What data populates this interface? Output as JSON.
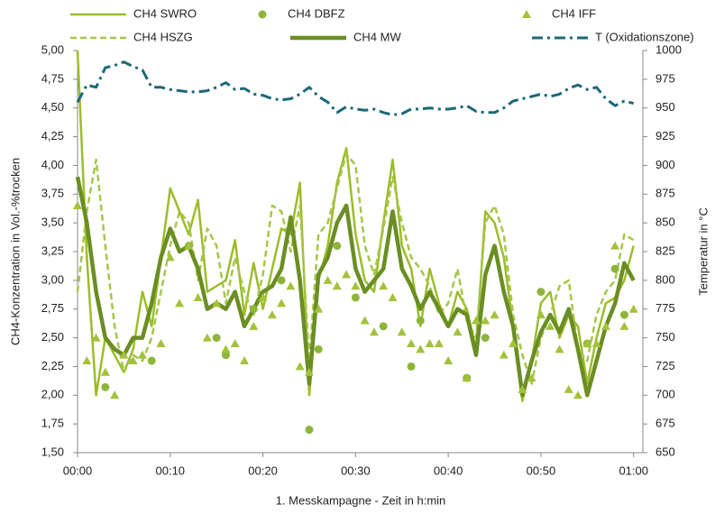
{
  "chart_data": {
    "type": "line",
    "xlabel": "1. Messkampagne - Zeit in h:min",
    "ylabel": "CH4-Konzentration in Vol.-%trocken",
    "y2label": "Temperatur in °C",
    "xlim": [
      0,
      61
    ],
    "xticks": [
      {
        "value": 0,
        "label": "00:00"
      },
      {
        "value": 10,
        "label": "00:10"
      },
      {
        "value": 20,
        "label": "00:20"
      },
      {
        "value": 30,
        "label": "00:30"
      },
      {
        "value": 40,
        "label": "00:40"
      },
      {
        "value": 50,
        "label": "00:50"
      },
      {
        "value": 60,
        "label": "01:00"
      }
    ],
    "ylim": [
      1.5,
      5
    ],
    "yticks": [
      {
        "value": 1.5,
        "label": "1,50"
      },
      {
        "value": 1.75,
        "label": "1,75"
      },
      {
        "value": 2,
        "label": "2,00"
      },
      {
        "value": 2.25,
        "label": "2,25"
      },
      {
        "value": 2.5,
        "label": "2,50"
      },
      {
        "value": 2.75,
        "label": "2,75"
      },
      {
        "value": 3,
        "label": "3,00"
      },
      {
        "value": 3.25,
        "label": "3,25"
      },
      {
        "value": 3.5,
        "label": "3,50"
      },
      {
        "value": 3.75,
        "label": "3,75"
      },
      {
        "value": 4,
        "label": "4,00"
      },
      {
        "value": 4.25,
        "label": "4,25"
      },
      {
        "value": 4.5,
        "label": "4,50"
      },
      {
        "value": 4.75,
        "label": "4,75"
      },
      {
        "value": 5,
        "label": "5,00"
      }
    ],
    "y2lim": [
      650,
      1000
    ],
    "y2ticks": [
      650,
      675,
      700,
      725,
      750,
      775,
      800,
      825,
      850,
      875,
      900,
      925,
      950,
      975,
      1000
    ],
    "grid": false,
    "x": [
      0,
      1,
      2,
      3,
      4,
      5,
      6,
      7,
      8,
      9,
      10,
      11,
      12,
      13,
      14,
      15,
      16,
      17,
      18,
      19,
      20,
      21,
      22,
      23,
      24,
      25,
      26,
      27,
      28,
      29,
      30,
      31,
      32,
      33,
      34,
      35,
      36,
      37,
      38,
      39,
      40,
      41,
      42,
      43,
      44,
      45,
      46,
      47,
      48,
      49,
      50,
      51,
      52,
      53,
      54,
      55,
      56,
      57,
      58,
      59,
      60
    ],
    "series": [
      {
        "name": "CH4  SWRO",
        "type": "line",
        "style": "solid",
        "color": "#9cbd2a",
        "values": [
          5.0,
          3.2,
          2.0,
          2.5,
          2.35,
          2.2,
          2.4,
          2.9,
          2.6,
          3.2,
          3.8,
          3.6,
          3.4,
          3.7,
          2.9,
          2.95,
          3.0,
          3.35,
          2.7,
          3.15,
          2.75,
          3.1,
          3.45,
          3.4,
          3.85,
          2.0,
          3.0,
          3.3,
          3.85,
          4.15,
          3.4,
          3.0,
          2.9,
          3.5,
          4.05,
          3.3,
          3.1,
          2.6,
          3.1,
          2.8,
          2.6,
          2.9,
          2.75,
          2.4,
          3.6,
          3.5,
          3.2,
          2.6,
          1.95,
          2.3,
          2.8,
          2.9,
          2.5,
          2.7,
          2.6,
          2.1,
          2.5,
          2.8,
          2.85,
          3.0,
          3.3
        ]
      },
      {
        "name": "CH4  DBFZ",
        "type": "scatter",
        "marker": "circle",
        "color": "#8db53a",
        "x": [
          3,
          8,
          12,
          15,
          16,
          19,
          22,
          25,
          26,
          28,
          30,
          33,
          36,
          37,
          42,
          44,
          50,
          55,
          58,
          59
        ],
        "values": [
          2.07,
          2.3,
          3.3,
          2.5,
          2.35,
          2.75,
          3.0,
          1.7,
          2.4,
          3.3,
          2.85,
          2.6,
          2.25,
          2.65,
          2.15,
          2.5,
          2.9,
          2.45,
          3.1,
          2.7
        ]
      },
      {
        "name": "CH4  IFF",
        "type": "scatter",
        "marker": "triangle",
        "color": "#a3c23a",
        "x": [
          0,
          1,
          2,
          3,
          4,
          5,
          6,
          7,
          9,
          10,
          11,
          12,
          13,
          14,
          15,
          16,
          17,
          18,
          19,
          20,
          21,
          22,
          23,
          24,
          25,
          26,
          27,
          28,
          29,
          30,
          31,
          32,
          33,
          34,
          35,
          36,
          37,
          38,
          39,
          40,
          41,
          42,
          43,
          44,
          45,
          46,
          47,
          48,
          49,
          50,
          51,
          52,
          53,
          54,
          55,
          56,
          57,
          58,
          59,
          60
        ],
        "values": [
          3.65,
          2.3,
          2.5,
          2.2,
          2.0,
          2.35,
          2.3,
          2.35,
          2.45,
          3.2,
          2.8,
          3.3,
          2.85,
          2.5,
          2.8,
          2.4,
          2.45,
          2.3,
          2.6,
          2.85,
          2.7,
          2.8,
          2.95,
          2.25,
          2.2,
          2.75,
          3.0,
          2.95,
          3.05,
          2.95,
          2.65,
          2.55,
          2.95,
          2.85,
          2.55,
          2.45,
          2.4,
          2.45,
          2.45,
          2.3,
          2.55,
          2.15,
          2.65,
          2.65,
          2.7,
          2.35,
          2.45,
          2.05,
          2.15,
          2.7,
          2.6,
          2.4,
          2.05,
          2.0,
          2.45,
          2.45,
          2.6,
          3.3,
          2.6,
          2.75
        ]
      },
      {
        "name": "CH4  HSZG",
        "type": "line",
        "style": "dashed",
        "color": "#a6c64a",
        "values": [
          2.9,
          3.6,
          4.05,
          3.3,
          2.6,
          2.2,
          2.35,
          2.3,
          2.5,
          2.9,
          3.3,
          3.6,
          3.5,
          3.0,
          3.45,
          3.3,
          2.8,
          3.2,
          2.9,
          2.7,
          3.05,
          3.65,
          3.6,
          3.25,
          3.65,
          2.3,
          3.4,
          3.5,
          3.8,
          4.1,
          4.0,
          3.3,
          3.05,
          3.45,
          3.9,
          3.5,
          3.2,
          3.1,
          2.95,
          2.7,
          2.8,
          3.1,
          2.65,
          2.5,
          3.5,
          3.65,
          3.4,
          2.7,
          2.35,
          2.1,
          2.5,
          2.7,
          2.95,
          3.0,
          2.4,
          2.3,
          2.7,
          2.9,
          3.0,
          3.4,
          3.35
        ]
      },
      {
        "name": "CH4  MW",
        "type": "line",
        "style": "thick",
        "color": "#6b8e23",
        "values": [
          3.9,
          3.5,
          2.9,
          2.5,
          2.4,
          2.35,
          2.5,
          2.5,
          2.8,
          3.2,
          3.45,
          3.25,
          3.3,
          3.1,
          2.75,
          2.8,
          2.75,
          2.9,
          2.6,
          2.75,
          2.9,
          2.95,
          3.1,
          3.55,
          3.0,
          2.1,
          3.05,
          3.2,
          3.5,
          3.65,
          3.1,
          2.9,
          3.0,
          3.1,
          3.6,
          3.1,
          2.95,
          2.75,
          2.9,
          2.75,
          2.6,
          2.75,
          2.7,
          2.35,
          3.05,
          3.3,
          2.9,
          2.6,
          2.0,
          2.3,
          2.55,
          2.7,
          2.55,
          2.75,
          2.4,
          2.0,
          2.3,
          2.6,
          2.8,
          3.15,
          3.0
        ]
      },
      {
        "name": "T (Oxidationszone)",
        "type": "line",
        "style": "dashdot",
        "axis": "y2",
        "color": "#1d6878",
        "values": [
          955,
          970,
          968,
          985,
          987,
          990,
          986,
          983,
          968,
          968,
          966,
          965,
          964,
          964,
          965,
          968,
          972,
          966,
          967,
          962,
          961,
          958,
          957,
          958,
          962,
          968,
          960,
          955,
          946,
          951,
          949,
          948,
          949,
          946,
          944,
          945,
          949,
          949,
          950,
          949,
          949,
          950,
          952,
          947,
          946,
          946,
          950,
          956,
          958,
          960,
          962,
          960,
          962,
          967,
          970,
          966,
          968,
          958,
          952,
          956,
          954
        ]
      }
    ]
  }
}
